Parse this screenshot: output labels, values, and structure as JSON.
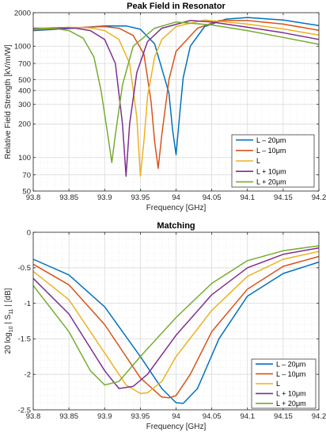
{
  "chart_data": [
    {
      "type": "line",
      "title": "Peak Field in Resonator",
      "xlabel": "Frequency [GHz]",
      "ylabel": "Relative Field Strength [kV/m/W]",
      "yscale": "log",
      "xlim": [
        93.8,
        94.2
      ],
      "ylim": [
        50,
        2000
      ],
      "grid": true,
      "legend_position": "lower-right",
      "x_ticks": [
        "93.8",
        "93.85",
        "93.9",
        "93.95",
        "94",
        "94.05",
        "94.1",
        "94.15",
        "94.2"
      ],
      "y_ticks": [
        {
          "value": 50,
          "label": "50"
        },
        {
          "value": 70,
          "label": "70"
        },
        {
          "value": 100,
          "label": "100"
        },
        {
          "value": 200,
          "label": "200"
        },
        {
          "value": 300,
          "label": "300"
        },
        {
          "value": 400,
          "label": "400"
        },
        {
          "value": 500,
          "label": "500"
        },
        {
          "value": 700,
          "label": "700"
        },
        {
          "value": 1000,
          "label": "1000"
        },
        {
          "value": 2000,
          "label": "2000"
        }
      ],
      "series": [
        {
          "name": "L – 20μm",
          "color": "#0072BD",
          "x": [
            93.8,
            93.85,
            93.9,
            93.93,
            93.95,
            93.97,
            93.99,
            93.995,
            94.0,
            94.005,
            94.01,
            94.02,
            94.04,
            94.07,
            94.1,
            94.15,
            94.2
          ],
          "y": [
            1380,
            1440,
            1520,
            1520,
            1420,
            1050,
            380,
            180,
            106,
            240,
            520,
            1000,
            1500,
            1750,
            1810,
            1720,
            1530
          ]
        },
        {
          "name": "L – 10μm",
          "color": "#D95319",
          "x": [
            93.8,
            93.85,
            93.9,
            93.92,
            93.94,
            93.955,
            93.965,
            93.97,
            93.975,
            93.98,
            93.99,
            94.0,
            94.03,
            94.06,
            94.1,
            94.15,
            94.2
          ],
          "y": [
            1400,
            1460,
            1500,
            1450,
            1250,
            850,
            320,
            140,
            80,
            160,
            500,
            900,
            1450,
            1700,
            1700,
            1580,
            1390
          ]
        },
        {
          "name": "L",
          "color": "#EDB120",
          "x": [
            93.8,
            93.85,
            93.88,
            93.9,
            93.92,
            93.935,
            93.945,
            93.95,
            93.955,
            93.96,
            93.97,
            93.98,
            94.0,
            94.04,
            94.07,
            94.1,
            94.15,
            94.2
          ],
          "y": [
            1420,
            1480,
            1460,
            1380,
            1150,
            700,
            230,
            68,
            140,
            350,
            800,
            1150,
            1500,
            1720,
            1650,
            1580,
            1430,
            1260
          ]
        },
        {
          "name": "L + 10μm",
          "color": "#7E2F8E",
          "x": [
            93.8,
            93.83,
            93.86,
            93.88,
            93.9,
            93.915,
            93.925,
            93.93,
            93.935,
            93.945,
            93.96,
            93.98,
            94.02,
            94.05,
            94.1,
            94.15,
            94.2
          ],
          "y": [
            1440,
            1460,
            1450,
            1380,
            1150,
            700,
            200,
            68,
            200,
            580,
            1100,
            1450,
            1700,
            1650,
            1480,
            1320,
            1150
          ]
        },
        {
          "name": "L + 20μm",
          "color": "#77AC30",
          "x": [
            93.8,
            93.83,
            93.85,
            93.87,
            93.885,
            93.895,
            93.905,
            93.91,
            93.915,
            93.925,
            93.94,
            93.97,
            94.0,
            94.05,
            94.1,
            94.15,
            94.2
          ],
          "y": [
            1460,
            1440,
            1380,
            1180,
            800,
            400,
            150,
            90,
            160,
            450,
            1000,
            1450,
            1650,
            1550,
            1380,
            1200,
            1040
          ]
        }
      ]
    },
    {
      "type": "line",
      "title": "Matching",
      "xlabel": "Frequency [GHz]",
      "ylabel_parts": {
        "a": "20 log",
        "sub10": "10",
        "b": "| S",
        "sub11": "11",
        "c": "| [dB]"
      },
      "xlim": [
        93.8,
        94.2
      ],
      "ylim": [
        -2.5,
        0
      ],
      "grid": true,
      "legend_position": "lower-right",
      "x_ticks": [
        "93.8",
        "93.85",
        "93.9",
        "93.95",
        "94",
        "94.05",
        "94.1",
        "94.15",
        "94.2"
      ],
      "y_ticks": [
        {
          "value": 0,
          "label": "0"
        },
        {
          "value": -0.5,
          "label": "-0.5"
        },
        {
          "value": -1,
          "label": "-1"
        },
        {
          "value": -1.5,
          "label": "-1.5"
        },
        {
          "value": -2,
          "label": "-2"
        },
        {
          "value": -2.5,
          "label": "-2.5"
        }
      ],
      "series": [
        {
          "name": "L – 20μm",
          "color": "#0072BD",
          "x": [
            93.8,
            93.85,
            93.9,
            93.95,
            93.98,
            94.0,
            94.01,
            94.03,
            94.06,
            94.1,
            94.15,
            94.2
          ],
          "y": [
            -0.38,
            -0.6,
            -1.05,
            -1.75,
            -2.2,
            -2.4,
            -2.41,
            -2.2,
            -1.5,
            -0.9,
            -0.58,
            -0.42
          ]
        },
        {
          "name": "L – 10μm",
          "color": "#D95319",
          "x": [
            93.8,
            93.85,
            93.9,
            93.95,
            93.98,
            93.99,
            94.0,
            94.02,
            94.05,
            94.1,
            94.15,
            94.2
          ],
          "y": [
            -0.45,
            -0.74,
            -1.3,
            -2.05,
            -2.32,
            -2.33,
            -2.3,
            -2.0,
            -1.4,
            -0.8,
            -0.48,
            -0.34
          ]
        },
        {
          "name": "L",
          "color": "#EDB120",
          "x": [
            93.8,
            93.85,
            93.9,
            93.93,
            93.95,
            93.96,
            93.98,
            94.0,
            94.05,
            94.1,
            94.15,
            94.2
          ],
          "y": [
            -0.55,
            -0.95,
            -1.7,
            -2.15,
            -2.27,
            -2.26,
            -2.1,
            -1.75,
            -1.1,
            -0.62,
            -0.38,
            -0.27
          ]
        },
        {
          "name": "L + 10μm",
          "color": "#7E2F8E",
          "x": [
            93.8,
            93.85,
            93.9,
            93.92,
            93.94,
            93.96,
            94.0,
            94.05,
            94.1,
            94.15,
            94.2
          ],
          "y": [
            -0.65,
            -1.15,
            -1.95,
            -2.2,
            -2.17,
            -2.0,
            -1.45,
            -0.88,
            -0.5,
            -0.31,
            -0.22
          ]
        },
        {
          "name": "L + 20μm",
          "color": "#77AC30",
          "x": [
            93.8,
            93.85,
            93.88,
            93.9,
            93.92,
            93.95,
            94.0,
            94.05,
            94.1,
            94.15,
            94.2
          ],
          "y": [
            -0.75,
            -1.4,
            -1.95,
            -2.15,
            -2.1,
            -1.75,
            -1.2,
            -0.72,
            -0.4,
            -0.26,
            -0.19
          ]
        }
      ]
    }
  ]
}
